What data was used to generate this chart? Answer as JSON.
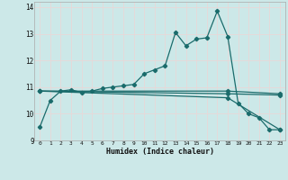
{
  "title": "",
  "xlabel": "Humidex (Indice chaleur)",
  "background_color": "#cce8e8",
  "grid_color": "#e8d8d8",
  "line_color": "#1a6b6b",
  "xlim": [
    -0.5,
    23.5
  ],
  "ylim": [
    9,
    14.2
  ],
  "yticks": [
    9,
    10,
    11,
    12,
    13,
    14
  ],
  "xticks": [
    0,
    1,
    2,
    3,
    4,
    5,
    6,
    7,
    8,
    9,
    10,
    11,
    12,
    13,
    14,
    15,
    16,
    17,
    18,
    19,
    20,
    21,
    22,
    23
  ],
  "main_x": [
    0,
    1,
    2,
    3,
    4,
    5,
    6,
    7,
    8,
    9,
    10,
    11,
    12,
    13,
    14,
    15,
    16,
    17,
    18,
    19,
    20,
    21,
    22,
    23
  ],
  "main_y": [
    9.5,
    10.5,
    10.85,
    10.9,
    10.8,
    10.85,
    10.95,
    11.0,
    11.05,
    11.1,
    11.5,
    11.65,
    11.8,
    13.05,
    12.55,
    12.8,
    12.85,
    13.85,
    12.9,
    10.4,
    10.0,
    9.85,
    9.4,
    9.4
  ],
  "line2_x": [
    0,
    18,
    23
  ],
  "line2_y": [
    10.85,
    10.85,
    10.75
  ],
  "line3_x": [
    0,
    18,
    23
  ],
  "line3_y": [
    10.85,
    10.75,
    10.7
  ],
  "line4_x": [
    0,
    18,
    23
  ],
  "line4_y": [
    10.85,
    10.6,
    9.4
  ],
  "marker": "D",
  "marker_size": 2.2,
  "linewidth": 0.9
}
